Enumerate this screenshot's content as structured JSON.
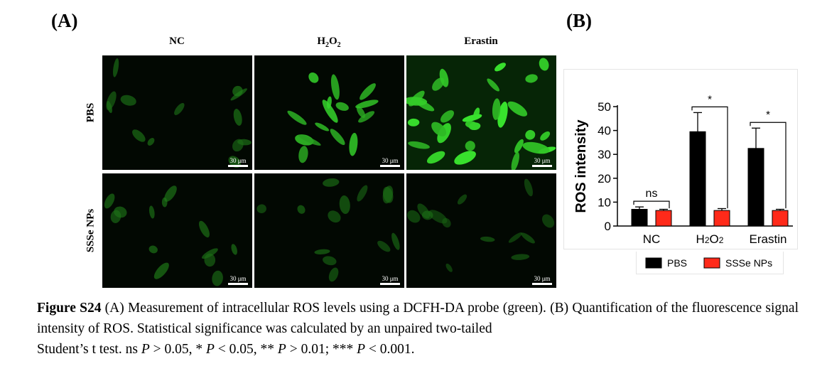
{
  "figure": {
    "panel_a_label": "(A)",
    "panel_b_label": "(B)",
    "columns": [
      {
        "main": "NC",
        "sub": ""
      },
      {
        "main": "H",
        "sub": "2",
        "main2": "O",
        "sub2": "2"
      },
      {
        "main": "Erastin",
        "sub": ""
      }
    ],
    "rows": [
      "PBS",
      "SSSe NPs"
    ],
    "scale_bar": "30 μm",
    "micrograph_brightness": [
      [
        0.35,
        0.8,
        0.95
      ],
      [
        0.35,
        0.3,
        0.25
      ]
    ]
  },
  "caption": {
    "title": "Figure S24",
    "text1": " (A) Measurement of intracellular ROS levels using a DCFH-DA probe (green). (B) Quantification of the fluorescence signal intensity of ROS. Statistical significance was calculated by an unpaired two-tailed",
    "line3_a": "Student’s t test. ns ",
    "p1": "P",
    "line3_b": " > 0.05, * ",
    "p2": "P",
    "line3_c": " < 0.05, ** ",
    "p3": "P",
    "line3_d": " > 0.01; *** ",
    "p4": "P",
    "line3_e": " < 0.001."
  },
  "chart_data": {
    "type": "bar",
    "categories": [
      "NC",
      "H2O2",
      "Erastin"
    ],
    "category_display": [
      {
        "text": "NC"
      },
      {
        "text": "H",
        "sub": "2",
        "text2": "O",
        "sub2": "2"
      },
      {
        "text": "Erastin"
      }
    ],
    "series": [
      {
        "name": "PBS",
        "color": "#000000",
        "values": [
          7,
          39.5,
          32.5
        ],
        "errors": [
          1,
          8,
          8.5
        ]
      },
      {
        "name": "SSSe NPs",
        "color": "#ff2a1a",
        "values": [
          6.5,
          6.5,
          6.5
        ],
        "errors": [
          0.5,
          0.8,
          0.5
        ]
      }
    ],
    "ylabel": "ROS intensity",
    "ylim": [
      0,
      50
    ],
    "yticks": [
      0,
      10,
      20,
      30,
      40,
      50
    ],
    "significance": [
      {
        "category": 0,
        "label": "ns"
      },
      {
        "category": 1,
        "label": "*"
      },
      {
        "category": 2,
        "label": "*"
      }
    ],
    "legend_position": "bottom"
  }
}
